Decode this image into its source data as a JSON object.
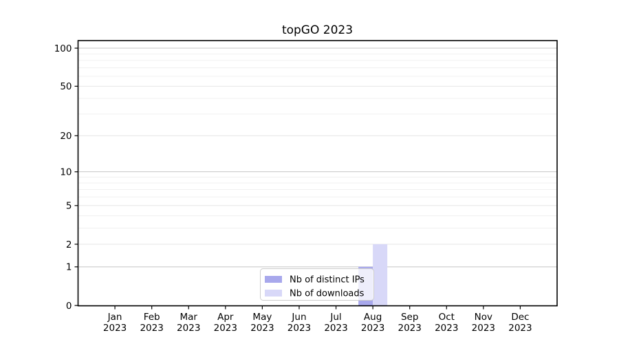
{
  "chart_data": {
    "type": "bar",
    "title": "topGO 2023",
    "categories": [
      {
        "month": "Jan",
        "year": "2023"
      },
      {
        "month": "Feb",
        "year": "2023"
      },
      {
        "month": "Mar",
        "year": "2023"
      },
      {
        "month": "Apr",
        "year": "2023"
      },
      {
        "month": "May",
        "year": "2023"
      },
      {
        "month": "Jun",
        "year": "2023"
      },
      {
        "month": "Jul",
        "year": "2023"
      },
      {
        "month": "Aug",
        "year": "2023"
      },
      {
        "month": "Sep",
        "year": "2023"
      },
      {
        "month": "Oct",
        "year": "2023"
      },
      {
        "month": "Nov",
        "year": "2023"
      },
      {
        "month": "Dec",
        "year": "2023"
      }
    ],
    "series": [
      {
        "name": "Nb of distinct IPs",
        "color": "#a8a8ec",
        "values": [
          0,
          0,
          0,
          0,
          0,
          0,
          0,
          1,
          0,
          0,
          0,
          0
        ]
      },
      {
        "name": "Nb of downloads",
        "color": "#d8d8f8",
        "values": [
          0,
          0,
          0,
          0,
          0,
          0,
          0,
          2,
          0,
          0,
          0,
          0
        ]
      }
    ],
    "y_axis": {
      "scale": "log1p",
      "lim": [
        0,
        100
      ],
      "major_ticks": [
        0,
        1,
        2,
        5,
        10,
        20,
        50,
        100
      ],
      "decade_ticks": [
        1,
        10,
        100
      ],
      "minor_gridlines": [
        3,
        4,
        6,
        7,
        8,
        9,
        30,
        40,
        60,
        70,
        80,
        90
      ]
    },
    "grid": "horizontal only",
    "legend": {
      "position": "inside lower-center of plot",
      "entries": [
        "Nb of distinct IPs",
        "Nb of downloads"
      ]
    }
  },
  "colors": {
    "background": "#ffffff",
    "spine": "#000000",
    "text": "#000000",
    "grid_decade": "#c4c4c4",
    "grid_major": "#e6e6e6",
    "grid_minor": "#f0f0f0",
    "legend_border": "#cccccc",
    "legend_bg_rgba": "rgba(255,255,255,0.8)"
  }
}
